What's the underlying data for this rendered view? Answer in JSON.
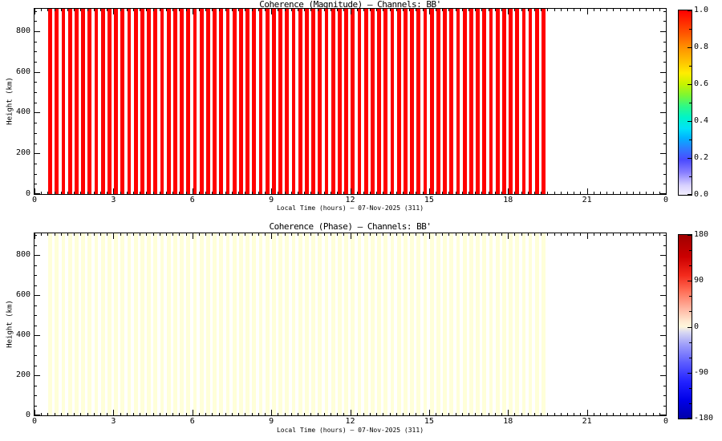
{
  "figure": {
    "background": "#FFFFFF",
    "date_label": "07-Nov-2025 (311)"
  },
  "chart_data": [
    {
      "type": "heatmap",
      "title": "Coherence (Magnitude) — Channels: BB'",
      "xlabel": "Local Time (hours) — 07-Nov-2025 (311)",
      "ylabel": "Height (km)",
      "x_range": [
        0,
        24
      ],
      "x_major_ticks": [
        0,
        3,
        6,
        9,
        12,
        15,
        18,
        21,
        24
      ],
      "x_tick_labels": [
        "0",
        "3",
        "6",
        "9",
        "12",
        "15",
        "18",
        "21",
        "0"
      ],
      "x_minor_step": 0.25,
      "y_range": [
        0,
        910
      ],
      "y_major_ticks": [
        0,
        200,
        400,
        600,
        800
      ],
      "y_tick_labels": [
        "0",
        "200",
        "400",
        "600",
        "800"
      ],
      "y_minor_step": 50,
      "grid": false,
      "legend_position": "right-colorbar",
      "records": {
        "start_hour": 0.6,
        "interval_hours": 0.25,
        "count": 76,
        "coherence_magnitude": 1.0,
        "height_span_km": [
          0,
          910
        ],
        "stripe_color": "#FF0000",
        "stripe_width_hours": 0.145
      },
      "colorbar": {
        "range": [
          0,
          1
        ],
        "label_values": [
          0,
          0.2,
          0.4,
          0.6,
          0.8,
          1
        ],
        "labels": [
          "0.0",
          "0.2",
          "0.4",
          "0.6",
          "0.8",
          "1.0"
        ],
        "minor_step": 0.1,
        "gradient": [
          [
            0.0,
            "#F2EEFF"
          ],
          [
            0.05,
            "#D9D2FF"
          ],
          [
            0.12,
            "#8A80FF"
          ],
          [
            0.19,
            "#4A4AFF"
          ],
          [
            0.25,
            "#2E7BFF"
          ],
          [
            0.31,
            "#00B4FF"
          ],
          [
            0.36,
            "#00E2F8"
          ],
          [
            0.42,
            "#00F4C8"
          ],
          [
            0.48,
            "#2EF986"
          ],
          [
            0.54,
            "#7CF733"
          ],
          [
            0.6,
            "#C6F300"
          ],
          [
            0.66,
            "#FFED00"
          ],
          [
            0.72,
            "#FFC400"
          ],
          [
            0.8,
            "#FF9000"
          ],
          [
            0.88,
            "#FF5200"
          ],
          [
            1.0,
            "#FF0000"
          ]
        ]
      }
    },
    {
      "type": "heatmap",
      "title": "Coherence (Phase) — Channels: BB'",
      "xlabel": "Local Time (hours) — 07-Nov-2025 (311)",
      "ylabel": "Height (km)",
      "x_range": [
        0,
        24
      ],
      "x_major_ticks": [
        0,
        3,
        6,
        9,
        12,
        15,
        18,
        21,
        24
      ],
      "x_tick_labels": [
        "0",
        "3",
        "6",
        "9",
        "12",
        "15",
        "18",
        "21",
        "0"
      ],
      "x_minor_step": 0.25,
      "y_range": [
        0,
        910
      ],
      "y_major_ticks": [
        0,
        200,
        400,
        600,
        800
      ],
      "y_tick_labels": [
        "0",
        "200",
        "400",
        "600",
        "800"
      ],
      "y_minor_step": 50,
      "grid": false,
      "legend_position": "right-colorbar",
      "records": {
        "start_hour": 0.6,
        "interval_hours": 0.25,
        "count": 76,
        "phase_deg": 0,
        "height_span_km": [
          0,
          910
        ],
        "stripe_color": "#FFFFD9",
        "stripe_width_hours": 0.145
      },
      "colorbar": {
        "range": [
          -180,
          180
        ],
        "label_values": [
          -180,
          -90,
          0,
          90,
          180
        ],
        "labels": [
          "-180",
          "-90",
          "0",
          "90",
          "180"
        ],
        "minor_step": 30,
        "gradient": [
          [
            0.0,
            "#0000A8"
          ],
          [
            0.1,
            "#0000E8"
          ],
          [
            0.2,
            "#2222FF"
          ],
          [
            0.3,
            "#5A5AFF"
          ],
          [
            0.4,
            "#9C9CFA"
          ],
          [
            0.47,
            "#D8D8F2"
          ],
          [
            0.5,
            "#FFF6DC"
          ],
          [
            0.53,
            "#FFE8D0"
          ],
          [
            0.6,
            "#FFB4A0"
          ],
          [
            0.7,
            "#FF6A52"
          ],
          [
            0.78,
            "#F32A1C"
          ],
          [
            0.88,
            "#CC0000"
          ],
          [
            1.0,
            "#A00000"
          ]
        ]
      }
    }
  ]
}
